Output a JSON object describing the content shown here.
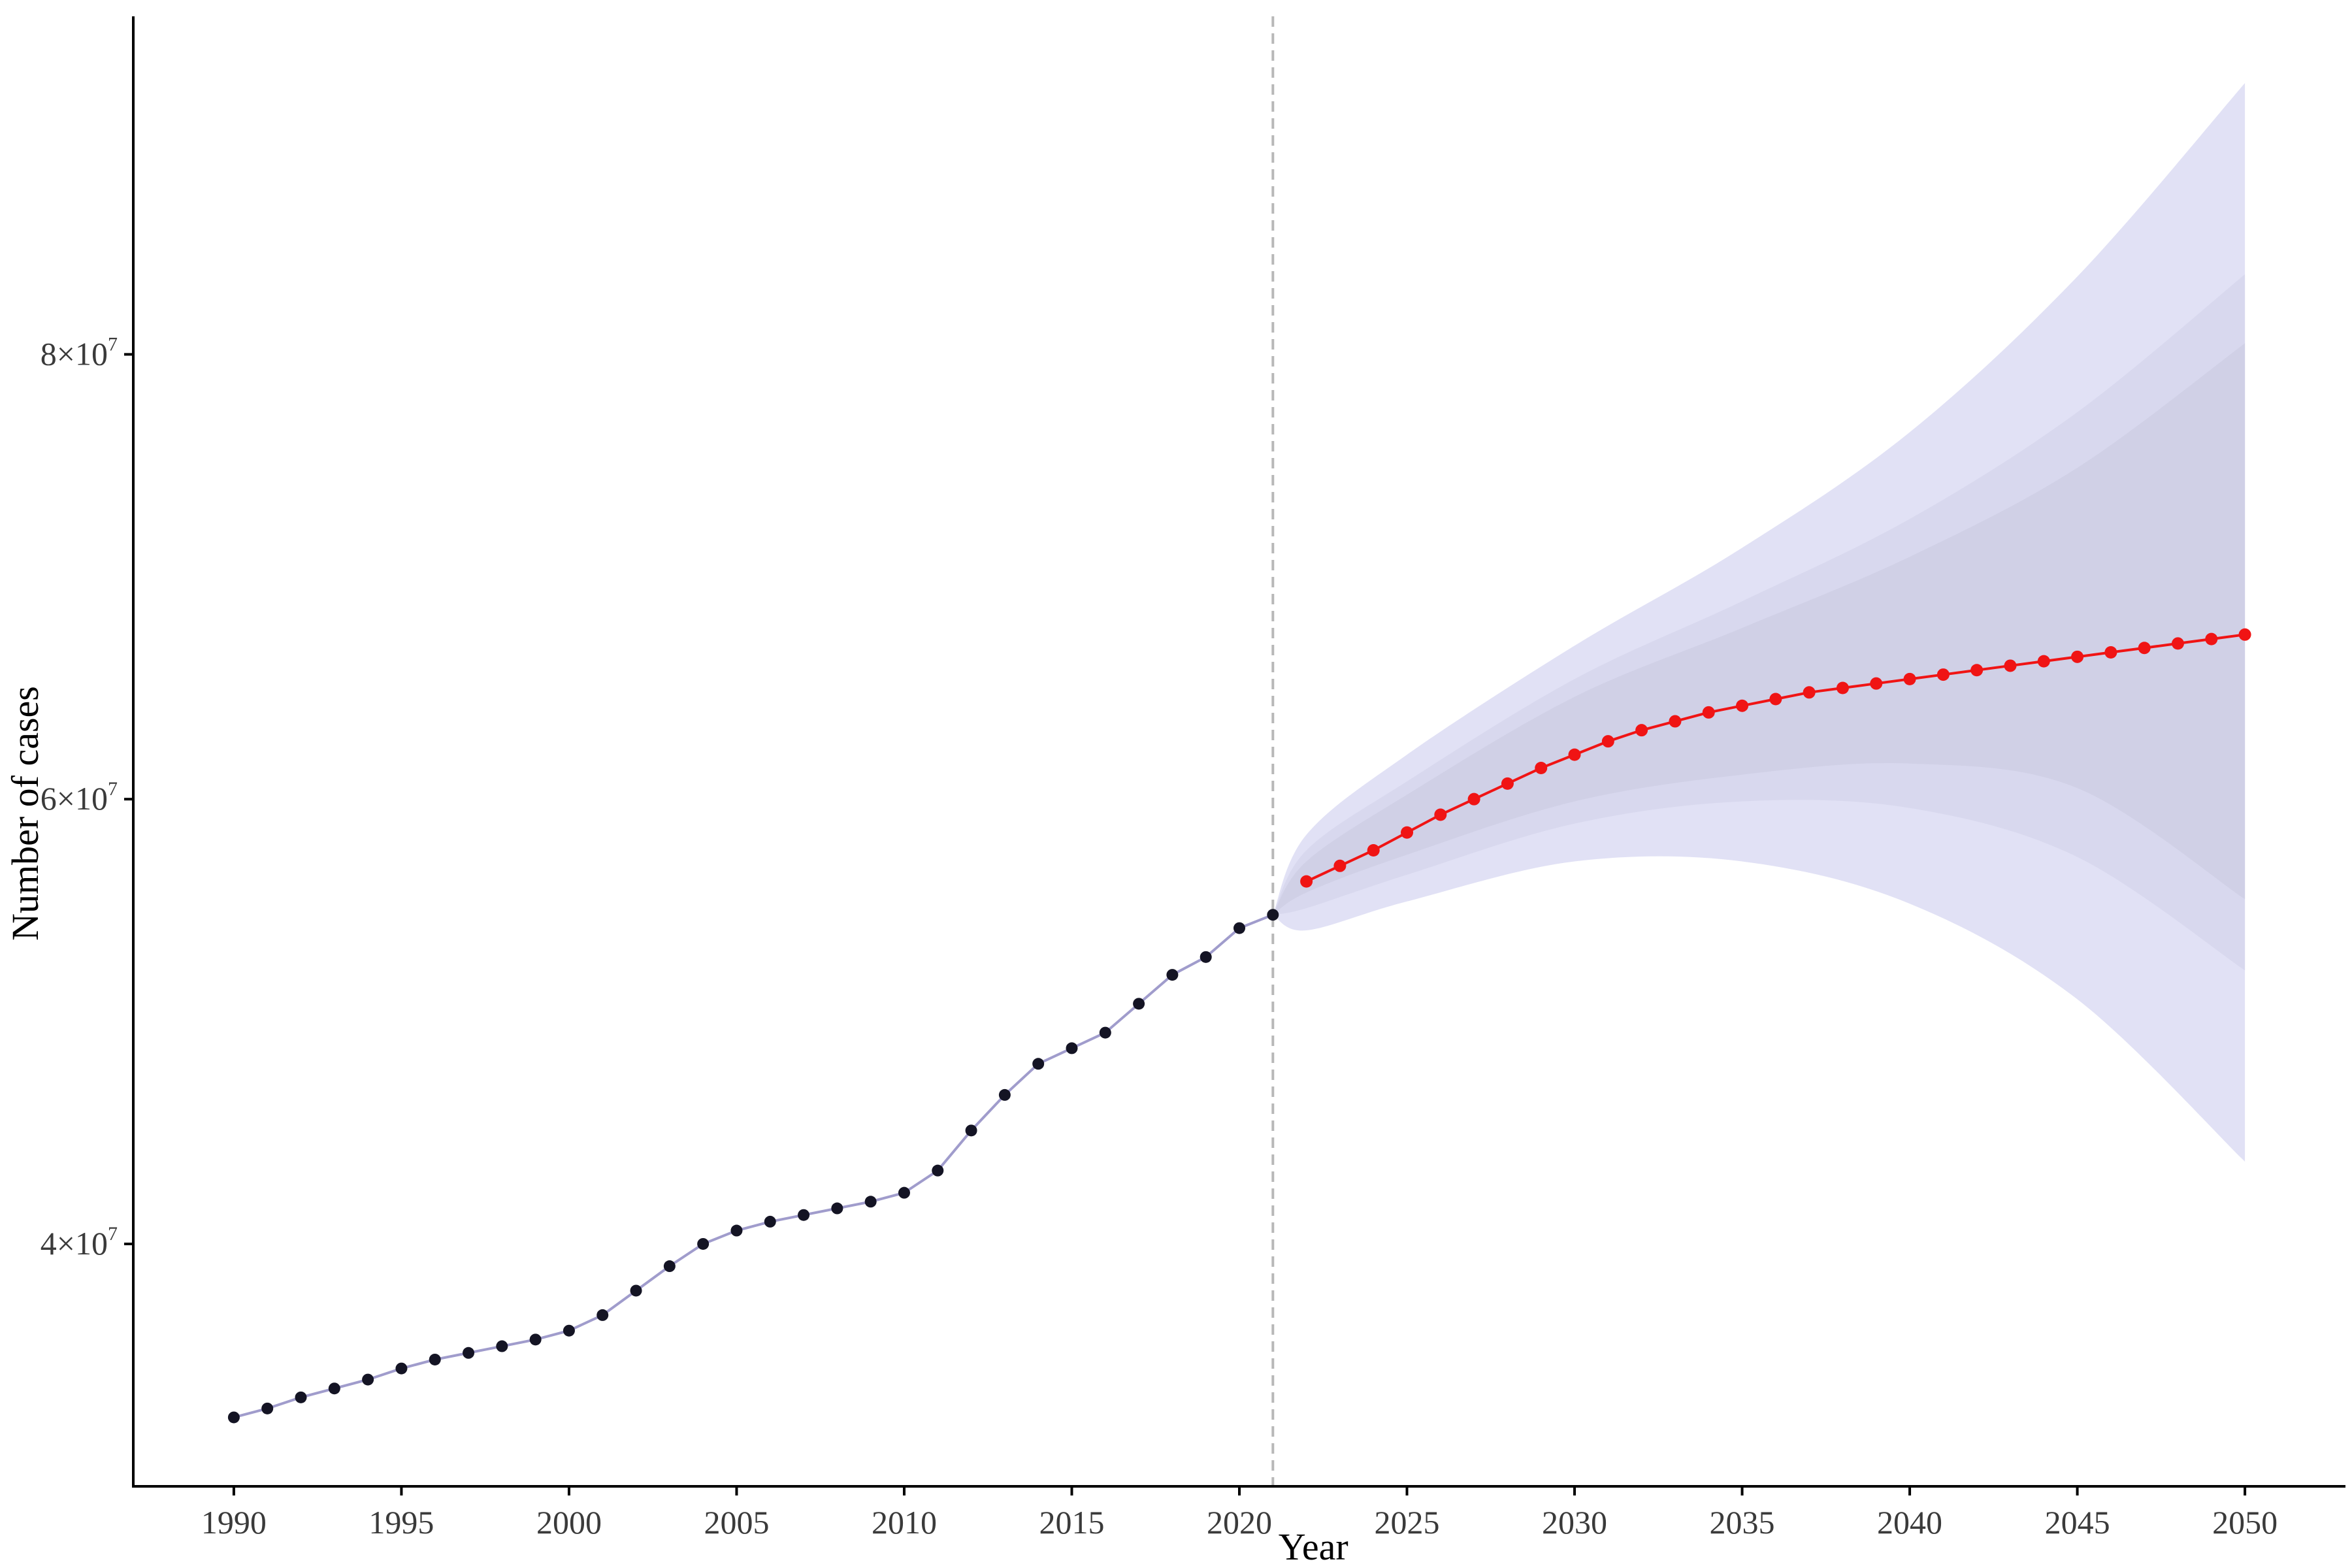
{
  "colors": {
    "band_outer": "#e1e1f5",
    "band_mid": "#d8d8ee",
    "band_inner": "#d0d0e6",
    "history_line": "#a09ccc",
    "history_point": "#141424",
    "projection": "#f01414",
    "divider": "#b8b8b8",
    "axis": "#000000"
  },
  "chart_data": {
    "type": "line",
    "xlabel": "Year",
    "ylabel": "Number of cases",
    "xlim": [
      1987,
      2053
    ],
    "ylim": [
      29100000,
      95200000
    ],
    "x_ticks": [
      1990,
      1995,
      2000,
      2005,
      2010,
      2015,
      2020,
      2025,
      2030,
      2035,
      2040,
      2045,
      2050
    ],
    "y_ticks": [
      {
        "value": 40000000,
        "base": "4×10",
        "exp": "7"
      },
      {
        "value": 60000000,
        "base": "6×10",
        "exp": "7"
      },
      {
        "value": 80000000,
        "base": "8×10",
        "exp": "7"
      }
    ],
    "divider_year": 2021,
    "grid": false,
    "legend": "none",
    "observed": {
      "x": [
        1990,
        1991,
        1992,
        1993,
        1994,
        1995,
        1996,
        1997,
        1998,
        1999,
        2000,
        2001,
        2002,
        2003,
        2004,
        2005,
        2006,
        2007,
        2008,
        2009,
        2010,
        2011,
        2012,
        2013,
        2014,
        2015,
        2016,
        2017,
        2018,
        2019,
        2020,
        2021
      ],
      "y": [
        32200000,
        32600000,
        33100000,
        33500000,
        33900000,
        34400000,
        34800000,
        35100000,
        35400000,
        35700000,
        36100000,
        36800000,
        37900000,
        39000000,
        40000000,
        40600000,
        41000000,
        41300000,
        41600000,
        41900000,
        42300000,
        43300000,
        45100000,
        46700000,
        48100000,
        48800000,
        49500000,
        50800000,
        52100000,
        52900000,
        54200000,
        54800000
      ]
    },
    "projected": {
      "x": [
        2022,
        2023,
        2024,
        2025,
        2026,
        2027,
        2028,
        2029,
        2030,
        2031,
        2032,
        2033,
        2034,
        2035,
        2036,
        2037,
        2038,
        2039,
        2040,
        2041,
        2042,
        2043,
        2044,
        2045,
        2046,
        2047,
        2048,
        2049,
        2050
      ],
      "y": [
        56300000,
        57000000,
        57700000,
        58500000,
        59300000,
        60000000,
        60700000,
        61400000,
        62000000,
        62600000,
        63100000,
        63500000,
        63900000,
        64200000,
        64500000,
        64800000,
        65000000,
        65200000,
        65400000,
        65600000,
        65800000,
        66000000,
        66200000,
        66400000,
        66600000,
        66800000,
        67000000,
        67200000,
        67400000
      ]
    },
    "bands": [
      {
        "x": [
          2021,
          2022,
          2025,
          2030,
          2035,
          2040,
          2045,
          2050
        ],
        "lower": [
          54800000,
          54100000,
          55400000,
          57200000,
          57200000,
          55300000,
          51000000,
          43700000
        ],
        "upper": [
          54800000,
          58400000,
          62000000,
          66900000,
          71300000,
          76500000,
          83500000,
          92200000
        ]
      },
      {
        "x": [
          2021,
          2022,
          2025,
          2030,
          2035,
          2040,
          2045,
          2050
        ],
        "lower": [
          54800000,
          55100000,
          56600000,
          58900000,
          59900000,
          59600000,
          57400000,
          52300000
        ],
        "upper": [
          54800000,
          57700000,
          60800000,
          65400000,
          68900000,
          72600000,
          77400000,
          83600000
        ]
      },
      {
        "x": [
          2021,
          2022,
          2025,
          2030,
          2035,
          2040,
          2045,
          2050
        ],
        "lower": [
          54800000,
          55800000,
          57500000,
          59900000,
          61100000,
          61600000,
          60500000,
          55500000
        ],
        "upper": [
          54800000,
          57200000,
          60200000,
          64600000,
          67700000,
          70900000,
          74900000,
          80500000
        ]
      }
    ]
  }
}
